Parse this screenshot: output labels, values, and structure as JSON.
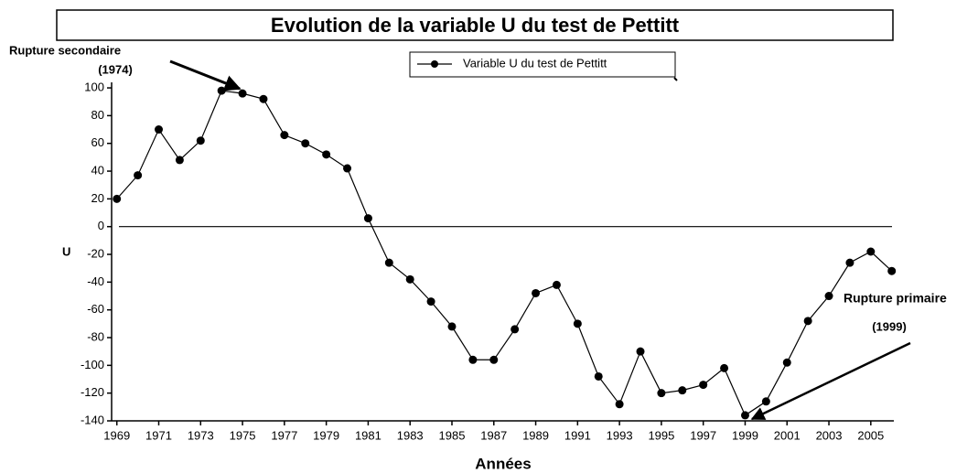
{
  "chart_data": {
    "type": "line",
    "title": "Evolution de la variable U du test de Pettitt",
    "x_label": "Années",
    "y_label": "U",
    "x": [
      1969,
      1970,
      1971,
      1972,
      1973,
      1974,
      1975,
      1976,
      1977,
      1978,
      1979,
      1980,
      1981,
      1982,
      1983,
      1984,
      1985,
      1986,
      1987,
      1988,
      1989,
      1990,
      1991,
      1992,
      1993,
      1994,
      1995,
      1996,
      1997,
      1998,
      1999,
      2000,
      2001,
      2002,
      2003,
      2004,
      2005,
      2006
    ],
    "series": [
      {
        "name": "Variable U du test de Pettitt",
        "color": "#000000",
        "values": [
          20,
          37,
          70,
          48,
          62,
          98,
          96,
          92,
          66,
          60,
          52,
          42,
          6,
          -26,
          -38,
          -54,
          -72,
          -96,
          -96,
          -74,
          -48,
          -42,
          -70,
          -108,
          -128,
          -90,
          -120,
          -118,
          -114,
          -102,
          -136,
          -126,
          -98,
          -68,
          -50,
          -26,
          -18,
          -32
        ]
      }
    ],
    "xlim": [
      1968.75,
      2006.1
    ],
    "xticks": [
      1969,
      1971,
      1973,
      1975,
      1977,
      1979,
      1981,
      1983,
      1985,
      1987,
      1989,
      1991,
      1993,
      1995,
      1997,
      1999,
      2001,
      2003,
      2005
    ],
    "ylim": [
      -140,
      104
    ],
    "yticks": [
      -140,
      -120,
      -100,
      -80,
      -60,
      -40,
      -20,
      0,
      20,
      40,
      60,
      80,
      100
    ],
    "reference_line": 0,
    "legend": "top",
    "annotations": [
      "Rupture secondaire",
      "(1974)",
      "Rupture primaire",
      "(1999)"
    ]
  }
}
